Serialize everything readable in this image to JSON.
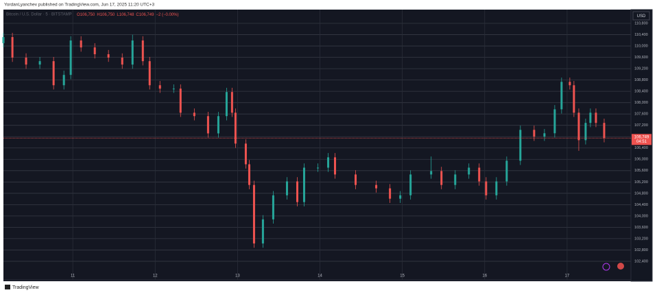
{
  "header": "YordanLyanchev published on TradingView.com, Jun 17, 2025 11:20 UTC+3",
  "footer": "TradingView",
  "chart_data": {
    "type": "candlestick",
    "symbol": "Bitcoin / U.S. Dollar · 5 · BITSTAMP",
    "ohlc_legend": [
      "O106,750",
      "H106,750",
      "L106,748",
      "C106,749",
      "−2 (−0.00%)"
    ],
    "currency": "USD",
    "last_price": 106749,
    "last_price_label": "106,749",
    "countdown": "04:51",
    "up_color": "#26a69a",
    "down_color": "#ef5350",
    "grid": true,
    "xlim": [
      10.158,
      17.775
    ],
    "xticks": [
      11,
      12,
      13,
      14,
      15,
      16,
      17
    ],
    "ylim": [
      101745,
      111285
    ],
    "yticks": [
      {
        "value": 110800,
        "label": "110,800"
      },
      {
        "value": 110400,
        "label": "110,400"
      },
      {
        "value": 110000,
        "label": "110,000"
      },
      {
        "value": 109600,
        "label": "109,600"
      },
      {
        "value": 109200,
        "label": "109,200"
      },
      {
        "value": 108800,
        "label": "108,800"
      },
      {
        "value": 108400,
        "label": "108,400"
      },
      {
        "value": 108000,
        "label": "108,000"
      },
      {
        "value": 107600,
        "label": "107,600"
      },
      {
        "value": 107200,
        "label": "107,200"
      },
      {
        "value": 106800,
        "label": "106,800"
      },
      {
        "value": 106400,
        "label": "106,400"
      },
      {
        "value": 106000,
        "label": "106,000"
      },
      {
        "value": 105600,
        "label": "105,600"
      },
      {
        "value": 105200,
        "label": "105,200"
      },
      {
        "value": 104800,
        "label": "104,800"
      },
      {
        "value": 104400,
        "label": "104,400"
      },
      {
        "value": 104000,
        "label": "104,000"
      },
      {
        "value": 103600,
        "label": "103,600"
      },
      {
        "value": 103200,
        "label": "103,200"
      },
      {
        "value": 102800,
        "label": "102,800"
      },
      {
        "value": 102400,
        "label": "102,400"
      }
    ],
    "x": [
      10.158,
      10.267,
      10.433,
      10.6,
      10.767,
      10.892,
      10.975,
      11.1,
      11.267,
      11.433,
      11.6,
      11.725,
      11.85,
      11.933,
      12.058,
      12.225,
      12.308,
      12.475,
      12.642,
      12.767,
      12.867,
      12.933,
      12.975,
      13.1,
      13.142,
      13.2,
      13.308,
      13.433,
      13.6,
      13.725,
      13.808,
      13.975,
      14.1,
      14.183,
      14.433,
      14.683,
      14.85,
      14.975,
      15.1,
      15.35,
      15.475,
      15.642,
      15.808,
      15.933,
      16.017,
      16.142,
      16.267,
      16.433,
      16.6,
      16.725,
      16.85,
      16.933,
      17.033,
      17.083,
      17.142,
      17.225,
      17.283,
      17.35,
      17.45
    ],
    "open": [
      110100,
      110315,
      109590,
      109345,
      109465,
      108615,
      108980,
      110195,
      109950,
      109710,
      109590,
      109345,
      110195,
      109465,
      108615,
      108495,
      108495,
      107645,
      107525,
      106915,
      107525,
      108375,
      107645,
      106555,
      105825,
      105095,
      103030,
      103880,
      104730,
      105220,
      104490,
      105705,
      105705,
      106070,
      105465,
      105095,
      104975,
      104610,
      104730,
      105465,
      105585,
      105095,
      105465,
      105705,
      105220,
      104730,
      105220,
      105950,
      107040,
      106800,
      106920,
      107765,
      108735,
      108615,
      107645,
      106675,
      107285,
      107645,
      107285
    ],
    "high": [
      110465,
      110465,
      109740,
      109615,
      109615,
      109130,
      110345,
      110345,
      110100,
      109860,
      109740,
      110400,
      110345,
      109615,
      108765,
      108645,
      108645,
      107795,
      107675,
      107675,
      108525,
      108525,
      107795,
      106705,
      105975,
      105245,
      104030,
      104880,
      105370,
      105370,
      105855,
      105855,
      106220,
      106220,
      105615,
      105245,
      105125,
      104880,
      105615,
      106100,
      105735,
      105615,
      105855,
      105855,
      105370,
      105370,
      106100,
      107190,
      107190,
      107070,
      107915,
      108885,
      108885,
      108765,
      107795,
      107435,
      107795,
      107795,
      107435
    ],
    "low": [
      109950,
      109440,
      109195,
      109195,
      108465,
      108465,
      108830,
      109800,
      109560,
      109440,
      109195,
      109195,
      109315,
      108465,
      108345,
      108345,
      107495,
      107375,
      106765,
      106765,
      107375,
      107495,
      106405,
      105675,
      104945,
      102880,
      102880,
      103730,
      104580,
      104340,
      104340,
      105555,
      105555,
      105315,
      104945,
      104825,
      104460,
      104460,
      104580,
      105315,
      104945,
      104945,
      105315,
      105070,
      104580,
      104580,
      105070,
      105800,
      106650,
      106650,
      106770,
      107615,
      108465,
      107495,
      106300,
      106525,
      107135,
      107135,
      106600
    ],
    "close": [
      110315,
      109590,
      109345,
      109465,
      108615,
      108980,
      110195,
      109950,
      109710,
      109590,
      109345,
      110195,
      109465,
      108615,
      108495,
      108495,
      107645,
      107525,
      106915,
      107525,
      108375,
      107645,
      106555,
      105825,
      105095,
      103030,
      103880,
      104730,
      105220,
      104490,
      105705,
      105705,
      106070,
      105465,
      105095,
      104975,
      104610,
      104730,
      105465,
      105585,
      105095,
      105465,
      105705,
      105220,
      104730,
      105220,
      105950,
      107040,
      106800,
      106920,
      107765,
      108735,
      108615,
      107645,
      106675,
      107285,
      107645,
      107285,
      106750
    ]
  }
}
